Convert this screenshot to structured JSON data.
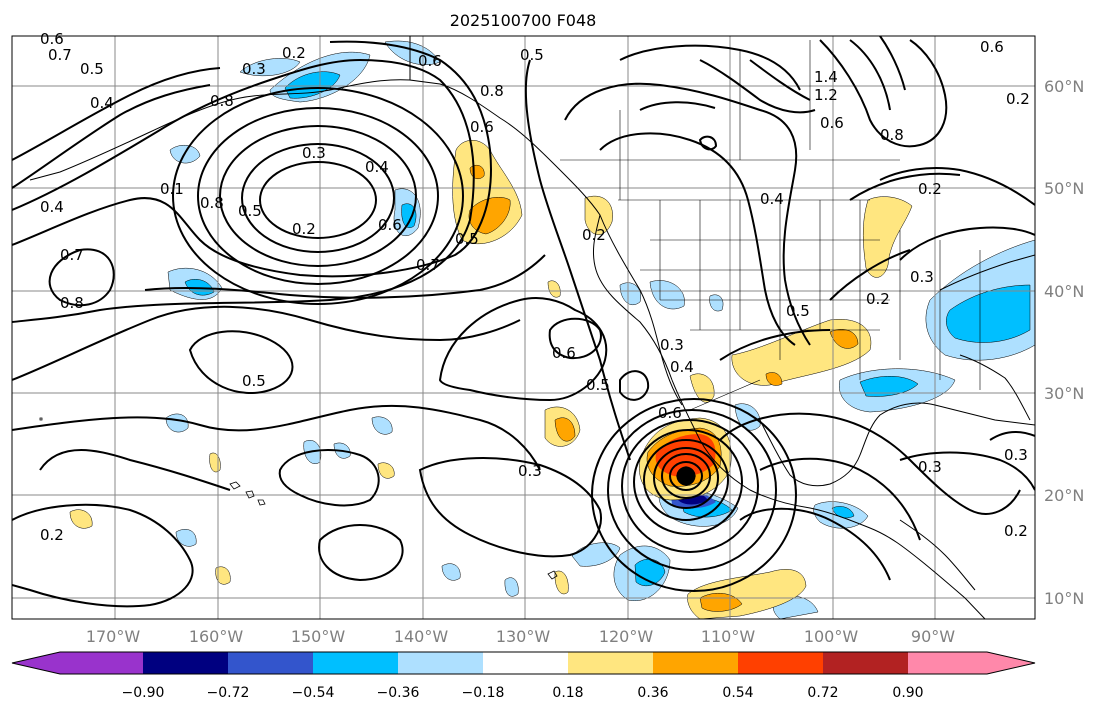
{
  "title": "2025100700 F048",
  "map": {
    "lon_labels": [
      "170°W",
      "160°W",
      "150°W",
      "140°W",
      "130°W",
      "120°W",
      "110°W",
      "100°W",
      "90°W"
    ],
    "lat_labels": [
      "60°N",
      "50°N",
      "40°N",
      "30°N",
      "20°N",
      "10°N"
    ],
    "contour_labels": [
      "0.6",
      "0.7",
      "0.5",
      "0.4",
      "0.3",
      "0.2",
      "0.6",
      "0.5",
      "0.8",
      "0.1",
      "0.8",
      "0.5",
      "0.3",
      "0.4",
      "0.2",
      "0.6",
      "0.7",
      "0.5",
      "0.4",
      "0.7",
      "0.8",
      "0.5",
      "1.4",
      "1.2",
      "0.8",
      "0.6",
      "0.4",
      "0.2",
      "0.3",
      "0.5",
      "0.2",
      "0.6",
      "0.5",
      "0.3",
      "0.3",
      "0.2",
      "0.3",
      "0.4",
      "0.6",
      "0.2",
      "0.3",
      "0.2",
      "0.8",
      "0.6",
      "0.6",
      "0.2"
    ]
  },
  "colorbar": {
    "tick_labels": [
      "−0.90",
      "−0.72",
      "−0.54",
      "−0.36",
      "−0.18",
      "0.18",
      "0.36",
      "0.54",
      "0.72",
      "0.90"
    ],
    "colors": [
      "#9933cc",
      "#000080",
      "#3355cc",
      "#00bfff",
      "#aee0ff",
      "#ffffff",
      "#ffe680",
      "#ffa500",
      "#ff4000",
      "#b22222",
      "#ff88aa"
    ]
  }
}
